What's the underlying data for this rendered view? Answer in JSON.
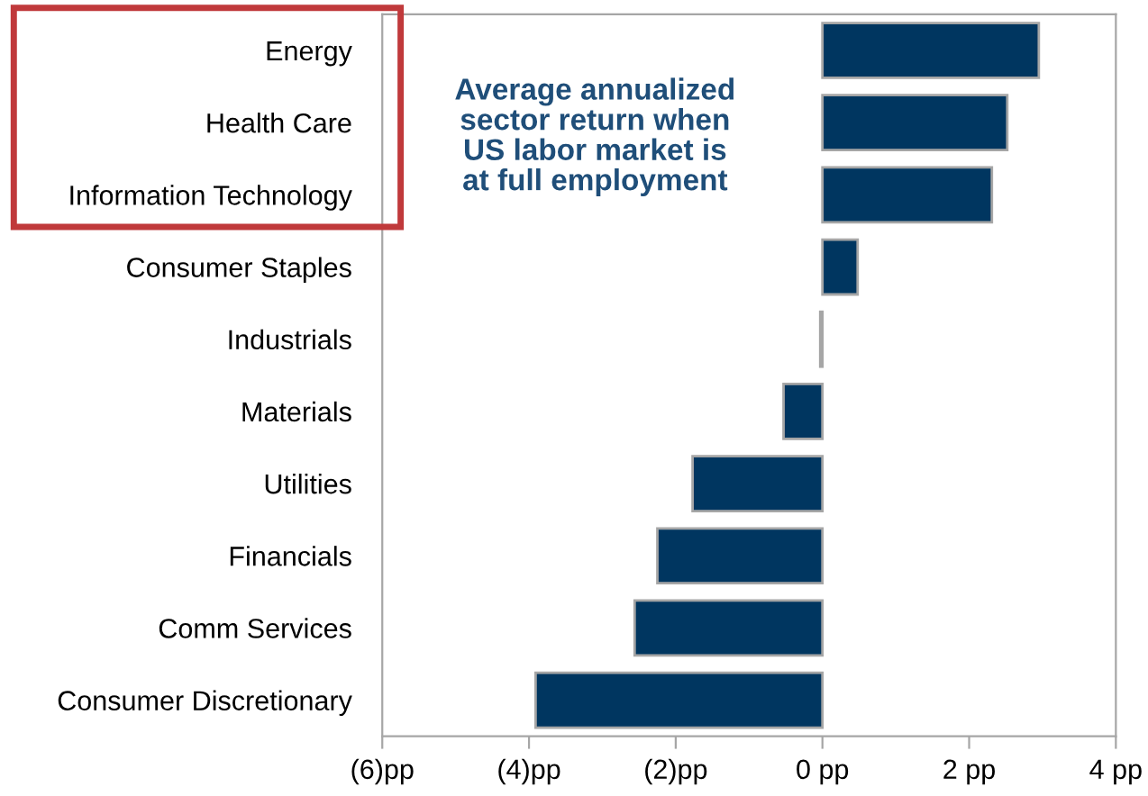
{
  "chart_data": {
    "type": "bar",
    "orientation": "horizontal",
    "title": "Average annualized\nsector return when\nUS labor market is\nat full employment",
    "categories": [
      "Energy",
      "Health Care",
      "Information Technology",
      "Consumer Staples",
      "Industrials",
      "Materials",
      "Utilities",
      "Financials",
      "Comm Services",
      "Consumer Discretionary"
    ],
    "values": [
      2.95,
      2.52,
      2.31,
      0.48,
      -0.03,
      -0.53,
      -1.77,
      -2.25,
      -2.56,
      -3.91
    ],
    "color": "#003660",
    "xlim": [
      -6,
      4
    ],
    "xticks": [
      {
        "value": -6,
        "label": "(6)pp"
      },
      {
        "value": -4,
        "label": "(4)pp"
      },
      {
        "value": -2,
        "label": "(2)pp"
      },
      {
        "value": 0,
        "label": "0 pp"
      },
      {
        "value": 2,
        "label": "2 pp"
      },
      {
        "value": 4,
        "label": "4 pp"
      }
    ],
    "grid": false,
    "legend": false
  }
}
